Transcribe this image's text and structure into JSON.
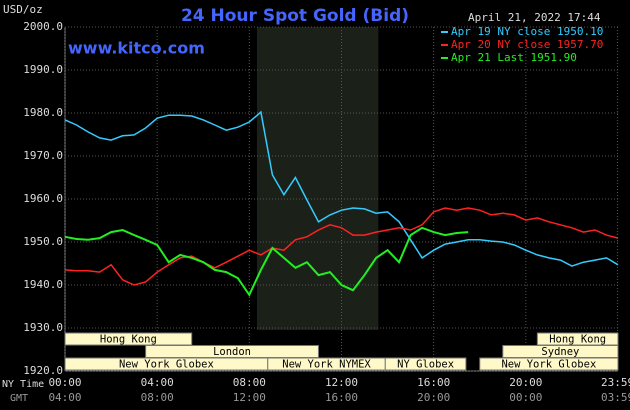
{
  "chart_data": {
    "type": "line",
    "title": "24 Hour Spot Gold (Bid)",
    "y_label": "USD/oz",
    "watermark": "www.kitco.com",
    "timestamp": "April 21, 2022 17:44",
    "x_label": "NY Time",
    "x2_label": "GMT",
    "xlim": [
      0,
      24
    ],
    "ylim": [
      1920,
      2000
    ],
    "grid": true,
    "legend_position": "upper right",
    "highlight_range": [
      8.33,
      13.6
    ],
    "yticks": [
      {
        "value": 1920,
        "label": "1920.0"
      },
      {
        "value": 1930,
        "label": "1930.0"
      },
      {
        "value": 1940,
        "label": "1940.0"
      },
      {
        "value": 1950,
        "label": "1950.0"
      },
      {
        "value": 1960,
        "label": "1960.0"
      },
      {
        "value": 1970,
        "label": "1970.0"
      },
      {
        "value": 1980,
        "label": "1980.0"
      },
      {
        "value": 1990,
        "label": "1990.0"
      },
      {
        "value": 2000,
        "label": "2000.0"
      }
    ],
    "xticks": [
      {
        "value": 0,
        "label": "00:00"
      },
      {
        "value": 4,
        "label": "04:00"
      },
      {
        "value": 8,
        "label": "08:00"
      },
      {
        "value": 12,
        "label": "12:00"
      },
      {
        "value": 16,
        "label": "16:00"
      },
      {
        "value": 20,
        "label": "20:00"
      },
      {
        "value": 23.98,
        "label": "23:59"
      }
    ],
    "x2_tick_labels": [
      "04:00",
      "08:00",
      "12:00",
      "16:00",
      "20:00",
      "00:00",
      "03:59"
    ],
    "sessions": [
      [
        {
          "label": "Hong Kong",
          "start": 0,
          "end": 5.5
        },
        {
          "label": "Hong Kong",
          "start": 20.5,
          "end": 24
        }
      ],
      [
        {
          "label": "London",
          "start": 3.5,
          "end": 11
        },
        {
          "label": "Sydney",
          "start": 19,
          "end": 24
        }
      ],
      [
        {
          "label": "New York Globex",
          "start": 0,
          "end": 8.8
        },
        {
          "label": "New York NYMEX",
          "start": 8.8,
          "end": 13.9
        },
        {
          "label": "NY Globex",
          "start": 13.9,
          "end": 17.4
        },
        {
          "label": "New York Globex",
          "start": 18,
          "end": 24
        }
      ]
    ],
    "x": [
      0,
      0.5,
      1,
      1.5,
      2,
      2.5,
      3,
      3.5,
      4,
      4.5,
      5,
      5.5,
      6,
      6.5,
      7,
      7.5,
      8,
      8.5,
      9,
      9.5,
      10,
      10.5,
      11,
      11.5,
      12,
      12.5,
      13,
      13.5,
      14,
      14.5,
      15,
      15.5,
      16,
      16.5,
      17,
      17.5,
      18,
      18.5,
      19,
      19.5,
      20,
      20.5,
      21,
      21.5,
      22,
      22.5,
      23,
      23.5,
      24
    ],
    "series": [
      {
        "name": "Apr 19 NY close 1950.10",
        "color": "#33ccff",
        "values": [
          1978.4,
          1977.2,
          1975.6,
          1974.2,
          1973.7,
          1974.7,
          1974.9,
          1976.5,
          1978.8,
          1979.5,
          1979.5,
          1979.3,
          1978.4,
          1977.2,
          1976.0,
          1976.7,
          1977.9,
          1980.2,
          1965.6,
          1961.0,
          1965.0,
          1959.8,
          1954.7,
          1956.3,
          1957.4,
          1957.9,
          1957.7,
          1956.7,
          1957.0,
          1954.7,
          1950.5,
          1946.3,
          1948.1,
          1949.5,
          1950.0,
          1950.5,
          1950.5,
          1950.2,
          1950.0,
          1949.3,
          1948.1,
          1947.0,
          1946.3,
          1945.8,
          1944.4,
          1945.3,
          1945.8,
          1946.3,
          1944.7
        ]
      },
      {
        "name": "Apr 20 NY close 1957.70",
        "color": "#ff2222",
        "values": [
          1943.5,
          1943.3,
          1943.3,
          1943.0,
          1944.7,
          1941.2,
          1940.0,
          1940.7,
          1943.0,
          1944.7,
          1946.3,
          1946.7,
          1945.3,
          1944.0,
          1945.3,
          1946.7,
          1948.1,
          1947.0,
          1948.6,
          1948.1,
          1950.5,
          1951.2,
          1952.8,
          1954.0,
          1953.3,
          1951.6,
          1951.6,
          1952.3,
          1952.8,
          1953.3,
          1952.8,
          1954.0,
          1957.0,
          1957.9,
          1957.4,
          1957.9,
          1957.4,
          1956.3,
          1956.7,
          1956.3,
          1955.1,
          1955.6,
          1954.7,
          1954.0,
          1953.3,
          1952.3,
          1952.8,
          1951.6,
          1950.9
        ]
      },
      {
        "name": "Apr 21 Last 1951.90",
        "color": "#22ee22",
        "values": [
          1951.2,
          1950.7,
          1950.5,
          1950.9,
          1952.3,
          1952.8,
          1951.6,
          1950.5,
          1949.3,
          1945.3,
          1947.0,
          1946.3,
          1945.3,
          1943.5,
          1943.0,
          1941.6,
          1937.7,
          1943.5,
          1948.6,
          1946.3,
          1944.0,
          1945.3,
          1942.3,
          1943.0,
          1940.0,
          1938.8,
          1942.3,
          1946.3,
          1948.1,
          1945.3,
          1951.6,
          1953.3,
          1952.3,
          1951.6,
          1952.1,
          1952.3,
          null,
          null,
          null,
          null,
          null,
          null,
          null,
          null,
          null,
          null,
          null,
          null,
          null
        ]
      }
    ]
  }
}
